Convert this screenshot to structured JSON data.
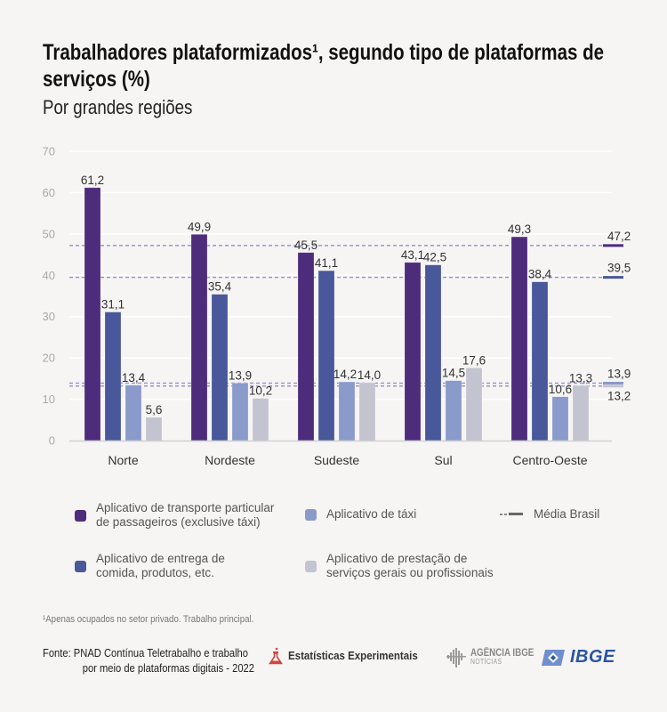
{
  "header": {
    "title": "Trabalhadores plataformizados¹, segundo tipo de plataformas de serviços (%)",
    "subtitle": "Por grandes regiões"
  },
  "chart_data": {
    "type": "bar",
    "title": "Trabalhadores plataformizados¹, segundo tipo de plataformas de serviços (%)",
    "subtitle": "Por grandes regiões",
    "xlabel": "",
    "ylabel": "",
    "ylim": [
      0,
      70
    ],
    "yticks": [
      0,
      10,
      20,
      30,
      40,
      50,
      60,
      70
    ],
    "ytick_labels": [
      "0",
      "10",
      "20",
      "30",
      "40",
      "50",
      "60",
      "70"
    ],
    "grid": true,
    "legend_position": "bottom",
    "categories": [
      "Norte",
      "Nordeste",
      "Sudeste",
      "Sul",
      "Centro-Oeste"
    ],
    "series": [
      {
        "name": "Aplicativo de transporte particular de passageiros (exclusive táxi)",
        "color": "#4e2c7c",
        "values": [
          61.2,
          49.9,
          45.5,
          43.1,
          49.3
        ],
        "labels": [
          "61,2",
          "49,9",
          "45,5",
          "43,1",
          "49,3"
        ],
        "brasil_mean": 47.2,
        "brasil_mean_label": "47,2"
      },
      {
        "name": "Aplicativo de entrega de comida, produtos, etc.",
        "color": "#48589a",
        "values": [
          31.1,
          35.4,
          41.1,
          42.5,
          38.4
        ],
        "labels": [
          "31,1",
          "35,4",
          "41,1",
          "42,5",
          "38,4"
        ],
        "brasil_mean": 39.5,
        "brasil_mean_label": "39,5"
      },
      {
        "name": "Aplicativo de táxi",
        "color": "#8a9acb",
        "values": [
          13.4,
          13.9,
          14.2,
          14.5,
          10.6
        ],
        "labels": [
          "13,4",
          "13,9",
          "14,2",
          "14,5",
          "10,6"
        ],
        "brasil_mean": 13.9,
        "brasil_mean_label": "13,9"
      },
      {
        "name": "Aplicativo de prestação de serviços gerais ou profissionais",
        "color": "#c4c3d0",
        "values": [
          5.6,
          10.2,
          14.0,
          17.6,
          13.3
        ],
        "labels": [
          "5,6",
          "10,2",
          "14,0",
          "17,6",
          "13,3"
        ],
        "brasil_mean": 13.2,
        "brasil_mean_label": "13,2"
      }
    ],
    "mean_line_color": "#9b96c8"
  },
  "legend": {
    "items": [
      {
        "line1": "Aplicativo de transporte particular",
        "line2": "de passageiros (exclusive táxi)",
        "color": "#4e2c7c"
      },
      {
        "line1": "Aplicativo de táxi",
        "line2": "",
        "color": "#8a9acb"
      },
      {
        "line1": "Aplicativo de entrega de",
        "line2": "comida, produtos, etc.",
        "color": "#48589a"
      },
      {
        "line1": "Aplicativo de prestação de",
        "line2": "serviços gerais ou profissionais",
        "color": "#c4c3d0"
      }
    ],
    "mean_label": "Média Brasil"
  },
  "footer": {
    "footnote": "¹Apenas ocupados no setor privado. Trabalho principal.",
    "source_line1": "Fonte: PNAD Contínua Teletrabalho e trabalho",
    "source_line2": "por meio de plataformas digitais - 2022",
    "experimental_label": "Estatísticas Experimentais",
    "agencia_label": "AGÊNCIA IBGE",
    "agencia_sub": "NOTÍCIAS",
    "ibge_label": "IBGE"
  }
}
